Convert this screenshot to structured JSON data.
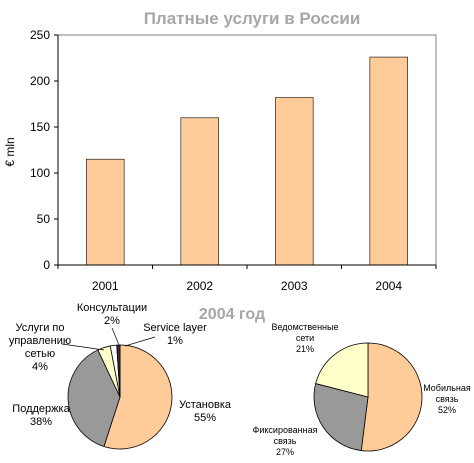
{
  "colors": {
    "bar": "#ffcc99",
    "pie_tan": "#ffcc99",
    "pie_gray": "#999999",
    "pie_cream": "#ffffcc",
    "pie_dark": "#333333",
    "pie_white": "#ffffff",
    "title": "#a6a6a6"
  },
  "chart_data": [
    {
      "type": "bar",
      "title": "Платные услуги в России",
      "xlabel": "",
      "ylabel": "€ mln",
      "categories": [
        "2001",
        "2002",
        "2003",
        "2004"
      ],
      "values": [
        115,
        160,
        182,
        226
      ],
      "ylim": [
        0,
        250
      ],
      "yticks": [
        "0",
        "50",
        "100",
        "150",
        "200",
        "250"
      ],
      "grid": false
    },
    {
      "type": "pie",
      "title": "2004 год",
      "slices": [
        {
          "label": "Установка",
          "pct": "55%",
          "value": 55,
          "color": "#ffcc99"
        },
        {
          "label": "Поддержка",
          "pct": "38%",
          "value": 38,
          "color": "#999999"
        },
        {
          "label_lines": [
            "Услуги по",
            "управлению",
            "сетью"
          ],
          "pct": "4%",
          "value": 4,
          "color": "#ffffcc"
        },
        {
          "label": "Консультации",
          "pct": "2%",
          "value": 2,
          "color": "#ffffff"
        },
        {
          "label": "Service layer",
          "pct": "1%",
          "value": 1,
          "color": "#333333"
        }
      ]
    },
    {
      "type": "pie",
      "title": "",
      "slices": [
        {
          "label_lines": [
            "Мобильная",
            "связь"
          ],
          "pct": "52%",
          "value": 52,
          "color": "#ffcc99"
        },
        {
          "label_lines": [
            "Фиксированная",
            "связь"
          ],
          "pct": "27%",
          "value": 27,
          "color": "#999999"
        },
        {
          "label_lines": [
            "Ведомственные",
            "сети"
          ],
          "pct": "21%",
          "value": 21,
          "color": "#ffffcc"
        }
      ]
    }
  ]
}
